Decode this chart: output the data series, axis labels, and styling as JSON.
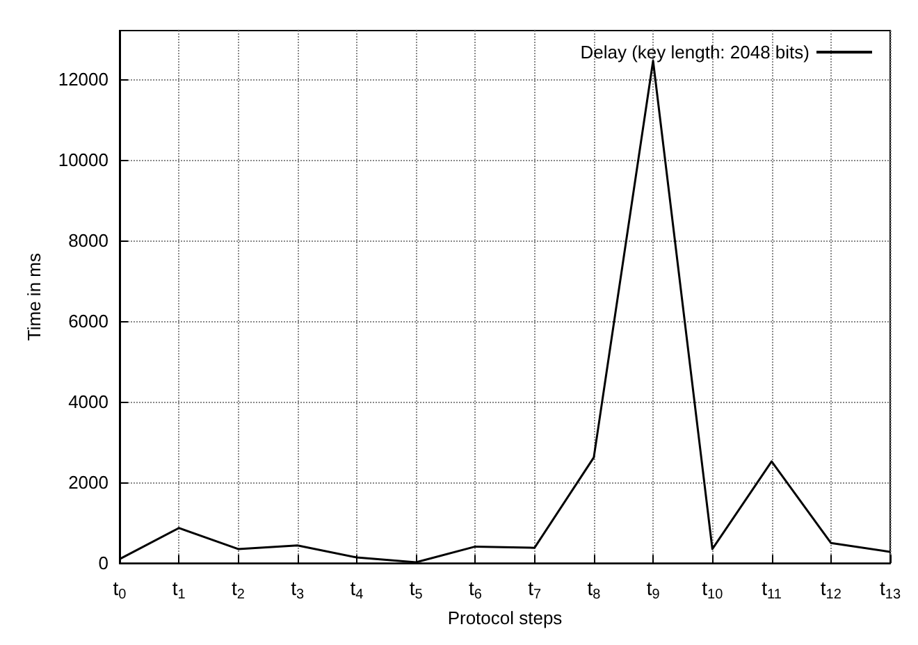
{
  "chart_data": {
    "type": "line",
    "xlabel": "Protocol steps",
    "ylabel": "Time in ms",
    "categories": [
      "t$_{0}$",
      "t$_{1}$",
      "t$_{2}$",
      "t$_{3}$",
      "t$_{4}$",
      "t$_{5}$",
      "t$_{6}$",
      "t$_{7}$",
      "t$_{8}$",
      "t$_{9}$",
      "t$_{10}$",
      "t$_{11}$",
      "t$_{12}$",
      "t$_{13}$"
    ],
    "series": [
      {
        "name": "Delay (key length: 2048 bits)",
        "color": "#000000",
        "values": [
          100,
          870,
          350,
          440,
          140,
          20,
          410,
          380,
          2620,
          12450,
          350,
          2520,
          500,
          280
        ]
      }
    ],
    "ylim": [
      0,
      13200
    ],
    "yticks": [
      0,
      2000,
      4000,
      6000,
      8000,
      10000,
      12000
    ],
    "grid": true,
    "legend": "top right",
    "marker": "none",
    "line_style": "solid"
  }
}
